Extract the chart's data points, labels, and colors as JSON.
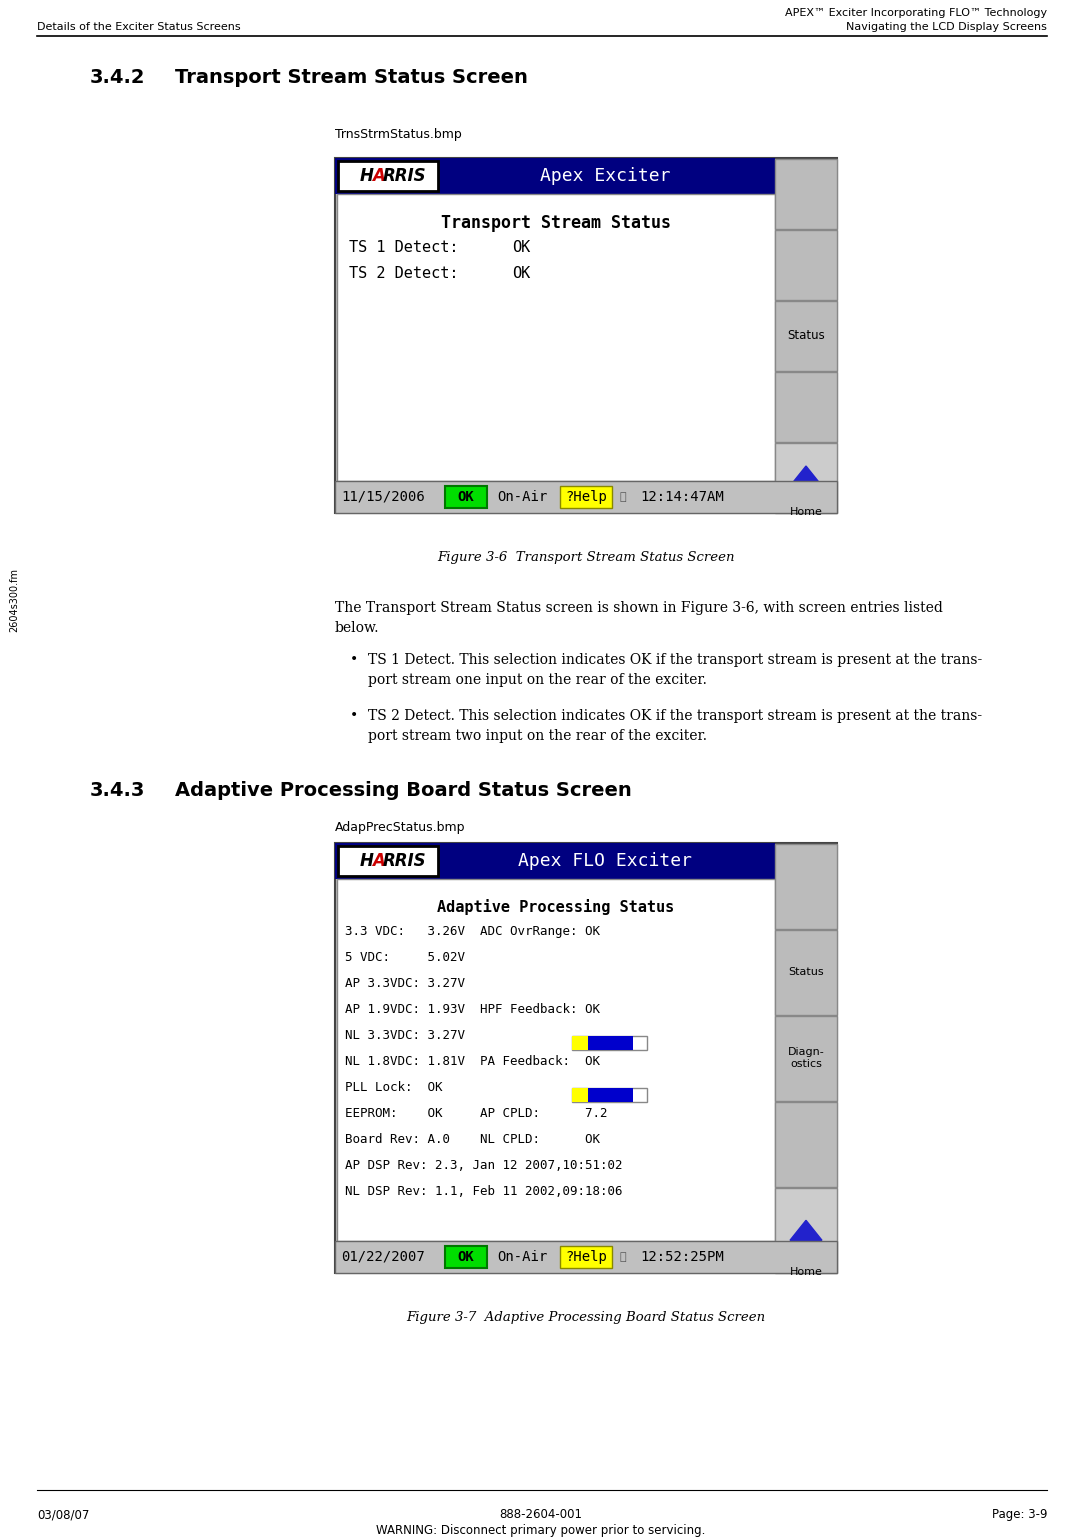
{
  "page_bg": "#ffffff",
  "header_right_line1": "APEX™ Exciter Incorporating FLO™ Technology",
  "header_right_line2": "Navigating the LCD Display Screens",
  "header_left": "Details of the Exciter Status Screens",
  "footer_left": "03/08/07",
  "footer_center": "888-2604-001",
  "footer_center2": "WARNING: Disconnect primary power prior to servicing.",
  "footer_right": "Page: 3-9",
  "left_margin_text": "2604s300.fm",
  "section_342_title": "3.4.2",
  "section_342_rest": "Transport Stream Status Screen",
  "fig1_filename": "TrnsStrmStatus.bmp",
  "fig1_caption": "Figure 3-6  Transport Stream Status Screen",
  "lcd1_header_bg": "#000080",
  "lcd1_header_text": "Apex Exciter",
  "lcd1_title": "Transport Stream Status",
  "lcd1_row1": "TS 1 Detect:",
  "lcd1_row1_val": "OK",
  "lcd1_row2": "TS 2 Detect:",
  "lcd1_row2_val": "OK",
  "lcd1_ok_color": "#00dd00",
  "lcd1_help_color": "#ffff00",
  "lcd1_date": "11/15/2006",
  "lcd1_time": "12:14:47AM",
  "lcd1_sidebar_buttons": [
    "",
    "",
    "Status",
    "",
    "Home"
  ],
  "body_text_line1": "The Transport Stream Status screen is shown in Figure 3-6, with screen entries listed",
  "body_text_line2": "below.",
  "bullet1_line1": "TS 1 Detect. This selection indicates OK if the transport stream is present at the trans-",
  "bullet1_line2": "port stream one input on the rear of the exciter.",
  "bullet2_line1": "TS 2 Detect. This selection indicates OK if the transport stream is present at the trans-",
  "bullet2_line2": "port stream two input on the rear of the exciter.",
  "section_343_title": "3.4.3",
  "section_343_rest": "Adaptive Processing Board Status Screen",
  "fig2_filename": "AdapPrecStatus.bmp",
  "fig2_caption": "Figure 3-7  Adaptive Processing Board Status Screen",
  "lcd2_header_bg": "#000080",
  "lcd2_header_text": "Apex FLO Exciter",
  "lcd2_title": "Adaptive Processing Status",
  "lcd2_rows": [
    "3.3 VDC:   3.26V  ADC OvrRange: OK",
    "5 VDC:     5.02V",
    "AP 3.3VDC: 3.27V",
    "AP 1.9VDC: 1.93V  HPF Feedback: OK",
    "NL 3.3VDC: 3.27V",
    "NL 1.8VDC: 1.81V  PA Feedback:  OK",
    "PLL Lock:  OK",
    "EEPROM:    OK     AP CPLD:      7.2",
    "Board Rev: A.0    NL CPLD:      OK",
    "AP DSP Rev: 2.3, Jan 12 2007,10:51:02",
    "NL DSP Rev: 1.1, Feb 11 2002,09:18:06"
  ],
  "lcd2_ok_color": "#00dd00",
  "lcd2_help_color": "#ffff00",
  "lcd2_date": "01/22/2007",
  "lcd2_time": "12:52:25PM",
  "lcd2_sidebar_buttons": [
    "",
    "Status",
    "Diagn-\nostics",
    "",
    "Home"
  ],
  "yellow_bar_color": "#ffff00",
  "blue_bar_color": "#0000cc"
}
